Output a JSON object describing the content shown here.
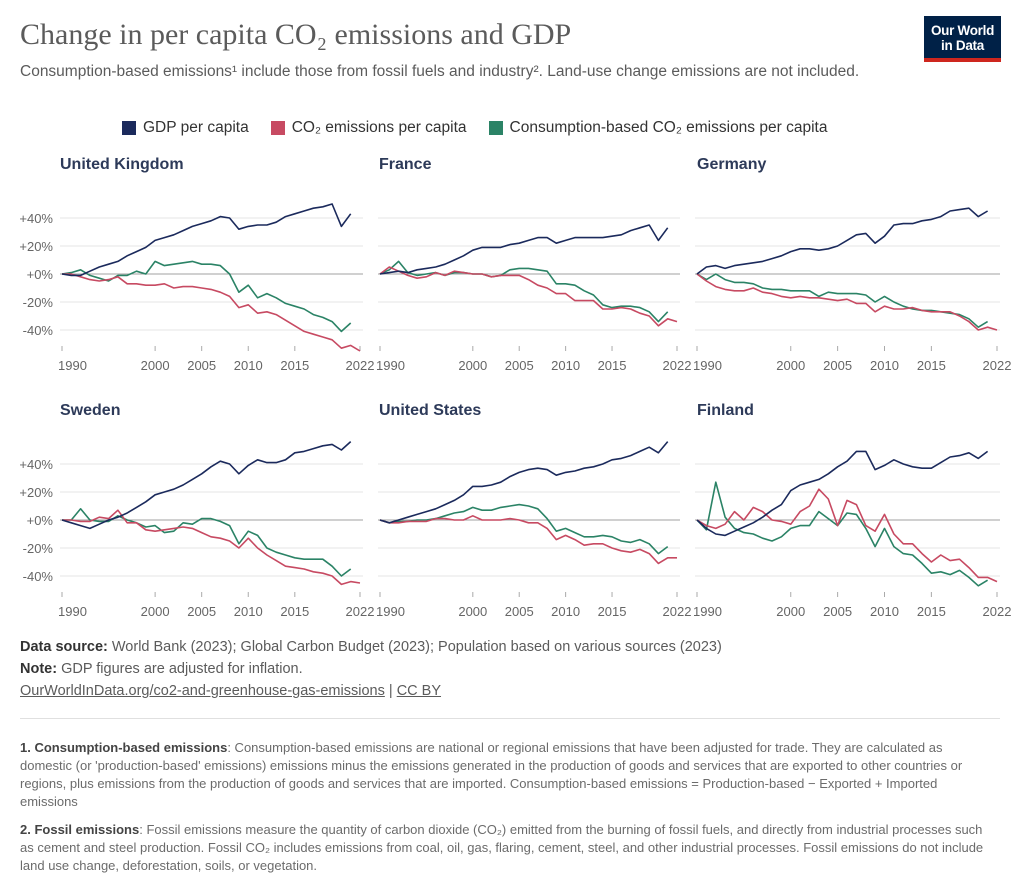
{
  "header": {
    "title": "Change in per capita CO₂ emissions and GDP",
    "subtitle": "Consumption-based emissions¹ include those from fossil fuels and industry². Land-use change emissions are not included.",
    "logo": "Our World in Data"
  },
  "legend": [
    {
      "label": "GDP per capita",
      "color": "#1b2a5c"
    },
    {
      "label": "CO₂ emissions per capita",
      "color": "#c74a62"
    },
    {
      "label": "Consumption-based CO₂ emissions per capita",
      "color": "#2b8366"
    }
  ],
  "chart_data": {
    "type": "line",
    "x_start": 1990,
    "ylim": [
      -57,
      58
    ],
    "y_ticks": [
      40,
      20,
      0,
      -20,
      -40
    ],
    "y_tick_labels": [
      "+40%",
      "+20%",
      "+0%",
      "-20%",
      "-40%"
    ],
    "x_ticks": [
      1990,
      2000,
      2005,
      2010,
      2015,
      2022
    ],
    "x_tick_labels": [
      "1990",
      "2000",
      "2005",
      "2010",
      "2015",
      "2022"
    ],
    "grid": true,
    "panels": [
      {
        "name": "United Kingdom",
        "series": [
          {
            "name": "GDP per capita",
            "values": [
              0,
              -1,
              -1,
              2,
              5,
              7,
              9,
              13,
              16,
              19,
              24,
              26,
              28,
              31,
              34,
              36,
              38,
              41,
              40,
              32,
              34,
              35,
              35,
              37,
              41,
              43,
              45,
              47,
              48,
              50,
              34,
              43
            ]
          },
          {
            "name": "CO₂ emissions per capita",
            "values": [
              0,
              0,
              -2,
              -4,
              -5,
              -4,
              -2,
              -7,
              -7,
              -8,
              -8,
              -7,
              -10,
              -9,
              -9,
              -10,
              -11,
              -13,
              -16,
              -24,
              -22,
              -28,
              -27,
              -29,
              -33,
              -37,
              -41,
              -43,
              -45,
              -47,
              -53,
              -51,
              -55
            ]
          },
          {
            "name": "Consumption-based CO₂ emissions per capita",
            "values": [
              0,
              1,
              3,
              -1,
              -3,
              -5,
              -1,
              -1,
              2,
              0,
              9,
              6,
              7,
              8,
              9,
              7,
              7,
              6,
              0,
              -13,
              -8,
              -17,
              -14,
              -17,
              -21,
              -23,
              -25,
              -29,
              -31,
              -34,
              -41,
              -35
            ]
          }
        ]
      },
      {
        "name": "France",
        "series": [
          {
            "name": "GDP per capita",
            "values": [
              0,
              1,
              2,
              1,
              3,
              4,
              5,
              7,
              10,
              13,
              17,
              19,
              19,
              19,
              21,
              22,
              24,
              26,
              26,
              22,
              24,
              26,
              26,
              26,
              26,
              27,
              28,
              31,
              33,
              35,
              24,
              33
            ]
          },
          {
            "name": "CO₂ emissions per capita",
            "values": [
              0,
              5,
              2,
              -1,
              -3,
              -2,
              1,
              -1,
              2,
              1,
              0,
              0,
              -2,
              -1,
              -1,
              -1,
              -4,
              -8,
              -10,
              -14,
              -14,
              -19,
              -19,
              -19,
              -25,
              -25,
              -24,
              -25,
              -28,
              -30,
              -37,
              -32,
              -34
            ]
          },
          {
            "name": "Consumption-based CO₂ emissions per capita",
            "values": [
              0,
              3,
              9,
              1,
              -1,
              0,
              1,
              -1,
              1,
              1,
              0,
              0,
              -2,
              -1,
              3,
              4,
              4,
              3,
              2,
              -7,
              -7,
              -8,
              -12,
              -15,
              -22,
              -24,
              -23,
              -23,
              -24,
              -27,
              -34,
              -27
            ]
          }
        ]
      },
      {
        "name": "Germany",
        "series": [
          {
            "name": "GDP per capita",
            "values": [
              0,
              5,
              6,
              4,
              6,
              7,
              8,
              9,
              11,
              13,
              16,
              18,
              18,
              17,
              18,
              20,
              24,
              28,
              29,
              22,
              27,
              35,
              36,
              36,
              38,
              39,
              41,
              45,
              46,
              47,
              41,
              45
            ]
          },
          {
            "name": "CO₂ emissions per capita",
            "values": [
              0,
              -5,
              -9,
              -11,
              -12,
              -12,
              -10,
              -13,
              -14,
              -16,
              -17,
              -16,
              -17,
              -17,
              -18,
              -19,
              -18,
              -21,
              -21,
              -27,
              -23,
              -25,
              -25,
              -24,
              -26,
              -27,
              -27,
              -27,
              -30,
              -34,
              -40,
              -38,
              -40
            ]
          },
          {
            "name": "Consumption-based CO₂ emissions per capita",
            "values": [
              0,
              -4,
              0,
              -4,
              -6,
              -6,
              -7,
              -10,
              -11,
              -11,
              -12,
              -12,
              -12,
              -16,
              -13,
              -14,
              -14,
              -14,
              -15,
              -20,
              -16,
              -20,
              -23,
              -25,
              -26,
              -26,
              -27,
              -28,
              -29,
              -32,
              -38,
              -34
            ]
          }
        ]
      },
      {
        "name": "Sweden",
        "series": [
          {
            "name": "GDP per capita",
            "values": [
              0,
              -2,
              -4,
              -6,
              -3,
              0,
              2,
              5,
              9,
              13,
              18,
              20,
              22,
              25,
              29,
              33,
              38,
              42,
              40,
              33,
              39,
              43,
              41,
              41,
              43,
              48,
              49,
              51,
              53,
              54,
              50,
              56
            ]
          },
          {
            "name": "CO₂ emissions per capita",
            "values": [
              0,
              0,
              -1,
              -1,
              2,
              1,
              7,
              -2,
              -2,
              -7,
              -8,
              -7,
              -6,
              -5,
              -6,
              -9,
              -12,
              -13,
              -15,
              -20,
              -13,
              -20,
              -25,
              -29,
              -33,
              -34,
              -35,
              -37,
              -38,
              -40,
              -46,
              -44,
              -45
            ]
          },
          {
            "name": "Consumption-based CO₂ emissions per capita",
            "values": [
              0,
              0,
              8,
              0,
              -1,
              -1,
              3,
              0,
              -2,
              -5,
              -4,
              -9,
              -8,
              -2,
              -3,
              1,
              1,
              -1,
              -4,
              -17,
              -8,
              -11,
              -20,
              -23,
              -25,
              -27,
              -28,
              -28,
              -28,
              -33,
              -40,
              -35
            ]
          }
        ]
      },
      {
        "name": "United States",
        "series": [
          {
            "name": "GDP per capita",
            "values": [
              0,
              -2,
              0,
              2,
              4,
              6,
              8,
              11,
              14,
              18,
              24,
              24,
              25,
              27,
              31,
              34,
              36,
              37,
              36,
              32,
              34,
              35,
              37,
              38,
              40,
              43,
              44,
              46,
              49,
              52,
              48,
              56
            ]
          },
          {
            "name": "CO₂ emissions per capita",
            "values": [
              0,
              -2,
              -2,
              -1,
              -1,
              -1,
              1,
              1,
              0,
              0,
              3,
              0,
              0,
              0,
              1,
              0,
              -2,
              -2,
              -6,
              -14,
              -11,
              -14,
              -18,
              -17,
              -17,
              -20,
              -22,
              -23,
              -21,
              -24,
              -31,
              -27,
              -27
            ]
          },
          {
            "name": "Consumption-based CO₂ emissions per capita",
            "values": [
              0,
              -2,
              -1,
              -1,
              0,
              0,
              1,
              3,
              5,
              6,
              9,
              7,
              7,
              9,
              10,
              11,
              10,
              8,
              1,
              -8,
              -6,
              -9,
              -12,
              -12,
              -11,
              -12,
              -15,
              -16,
              -14,
              -17,
              -24,
              -19
            ]
          }
        ]
      },
      {
        "name": "Finland",
        "series": [
          {
            "name": "GDP per capita",
            "values": [
              0,
              -6,
              -10,
              -11,
              -8,
              -5,
              -2,
              2,
              7,
              11,
              21,
              25,
              27,
              29,
              33,
              38,
              42,
              49,
              49,
              36,
              39,
              43,
              40,
              38,
              37,
              37,
              41,
              45,
              46,
              48,
              44,
              49
            ]
          },
          {
            "name": "CO₂ emissions per capita",
            "values": [
              0,
              -4,
              -6,
              -3,
              6,
              0,
              9,
              6,
              0,
              -1,
              -3,
              6,
              10,
              22,
              15,
              -4,
              14,
              11,
              -4,
              -8,
              4,
              -10,
              -17,
              -17,
              -24,
              -30,
              -25,
              -29,
              -28,
              -34,
              -41,
              -41,
              -44
            ]
          },
          {
            "name": "Consumption-based CO₂ emissions per capita",
            "values": [
              0,
              -7,
              27,
              2,
              -6,
              -9,
              -10,
              -13,
              -15,
              -12,
              -6,
              -4,
              -4,
              6,
              1,
              -4,
              5,
              4,
              -6,
              -19,
              -6,
              -19,
              -24,
              -25,
              -31,
              -38,
              -37,
              -39,
              -36,
              -41,
              -47,
              -43
            ]
          }
        ]
      }
    ]
  },
  "footer": {
    "source_label": "Data source:",
    "source": "World Bank (2023); Global Carbon Budget (2023); Population based on various sources (2023)",
    "note_label": "Note:",
    "note": "GDP figures are adjusted for inflation.",
    "link": "OurWorldInData.org/co2-and-greenhouse-gas-emissions",
    "sep": "|",
    "license": "CC BY"
  },
  "footnotes": [
    {
      "label": "1. Consumption-based emissions",
      "text": ": Consumption-based emissions are national or regional emissions that have been adjusted for trade. They are calculated as domestic (or 'production-based' emissions) emissions minus the emissions generated in the production of goods and services that are exported to other countries or regions, plus emissions from the production of goods and services that are imported. Consumption-based emissions = Production-based − Exported + Imported emissions"
    },
    {
      "label": "2. Fossil emissions",
      "text": ": Fossil emissions measure the quantity of carbon dioxide (CO₂) emitted from the burning of fossil fuels, and directly from industrial processes such as cement and steel production. Fossil CO₂ includes emissions from coal, oil, gas, flaring, cement, steel, and other industrial processes. Fossil emissions do not include land use change, deforestation, soils, or vegetation."
    }
  ]
}
